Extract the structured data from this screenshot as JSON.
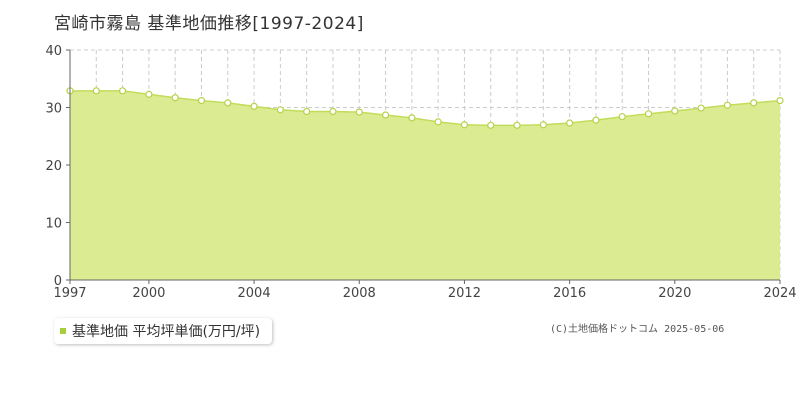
{
  "title": "宮崎市霧島 基準地価推移[1997-2024]",
  "legend": {
    "label": "基準地価 平均坪単価(万円/坪)"
  },
  "copyright": "(C)土地価格ドットコム 2025-05-06",
  "colors": {
    "area_fill": "#dbeb91",
    "line": "#c3dc5a",
    "marker_stroke": "#b5d24a",
    "grid": "#cccccc",
    "legend_swatch": "#a8cf3b"
  },
  "chart_data": {
    "type": "area",
    "x": [
      1997,
      1998,
      1999,
      2000,
      2001,
      2002,
      2003,
      2004,
      2005,
      2006,
      2007,
      2008,
      2009,
      2010,
      2011,
      2012,
      2013,
      2014,
      2015,
      2016,
      2017,
      2018,
      2019,
      2020,
      2021,
      2022,
      2023,
      2024
    ],
    "series": [
      {
        "name": "基準地価 平均坪単価(万円/坪)",
        "values": [
          32.9,
          32.9,
          32.9,
          32.3,
          31.7,
          31.2,
          30.8,
          30.2,
          29.6,
          29.3,
          29.3,
          29.2,
          28.7,
          28.2,
          27.5,
          27.0,
          26.9,
          26.9,
          27.0,
          27.3,
          27.8,
          28.4,
          28.9,
          29.4,
          29.9,
          30.4,
          30.8,
          31.2
        ]
      }
    ],
    "xlim": [
      1997,
      2024
    ],
    "ylim": [
      0,
      40
    ],
    "x_ticks": [
      "1997",
      "2000",
      "2004",
      "2008",
      "2012",
      "2016",
      "2020",
      "2024"
    ],
    "y_ticks": [
      "0",
      "10",
      "20",
      "30",
      "40"
    ],
    "grid": true,
    "legend_position": "bottom-left"
  }
}
